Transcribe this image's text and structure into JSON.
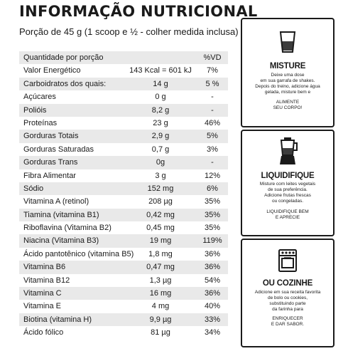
{
  "title": "INFORMAÇÃO NUTRICIONAL",
  "subtitle": "Porção de 45 g (1 scoop e ½ - colher medida inclusa)",
  "table": {
    "header": {
      "name": "Quantidade por porção",
      "pct": "%VD"
    },
    "rows": [
      {
        "name": "Valor Energético",
        "amount": "143 Kcal = 601 kJ",
        "pct": "7%"
      },
      {
        "name": "Carboidratos dos quais:",
        "amount": "14 g",
        "pct": "5 %"
      },
      {
        "name": "Açúcares",
        "amount": "0 g",
        "pct": "-"
      },
      {
        "name": "Polióis",
        "amount": "8,2 g",
        "pct": "-"
      },
      {
        "name": "Proteínas",
        "amount": "23 g",
        "pct": "46%"
      },
      {
        "name": "Gorduras Totais",
        "amount": "2,9 g",
        "pct": "5%"
      },
      {
        "name": "Gorduras Saturadas",
        "amount": "0,7 g",
        "pct": "3%"
      },
      {
        "name": "Gorduras Trans",
        "amount": "0g",
        "pct": "-"
      },
      {
        "name": "Fibra Alimentar",
        "amount": "3 g",
        "pct": "12%"
      },
      {
        "name": "Sódio",
        "amount": "152 mg",
        "pct": "6%"
      },
      {
        "name": "Vitamina A (retinol)",
        "amount": "208 µg",
        "pct": "35%"
      },
      {
        "name": "Tiamina (vitamina B1)",
        "amount": "0,42 mg",
        "pct": "35%"
      },
      {
        "name": "Riboflavina (Vitamina B2)",
        "amount": "0,45 mg",
        "pct": "35%"
      },
      {
        "name": "Niacina (Vitamina B3)",
        "amount": "19 mg",
        "pct": "119%"
      },
      {
        "name": "Ácido pantotênico (vitamina B5)",
        "amount": "1,8 mg",
        "pct": "36%"
      },
      {
        "name": "Vitamina B6",
        "amount": "0,47 mg",
        "pct": "36%"
      },
      {
        "name": "Vitamina B12",
        "amount": "1,3 µg",
        "pct": "54%"
      },
      {
        "name": "Vitamina C",
        "amount": "16 mg",
        "pct": "36%"
      },
      {
        "name": "Vitamina E",
        "amount": "4 mg",
        "pct": "40%"
      },
      {
        "name": "Biotina (vitamina H)",
        "amount": "9,9 µg",
        "pct": "33%"
      },
      {
        "name": "Ácido fólico",
        "amount": "81 µg",
        "pct": "34%"
      }
    ]
  },
  "panels": [
    {
      "icon": "glass-icon",
      "title": "MISTURE",
      "desc": [
        "Deixe uma dose",
        "em sua garrafa de shakes.",
        "Depois do treino, adicione água",
        "gelada, misture bem e"
      ],
      "tag": [
        "ALIMENTE",
        "SEU CORPO!"
      ]
    },
    {
      "icon": "blender-icon",
      "title": "LIQUIDIFIQUE",
      "desc": [
        "Misture com leites vegetais",
        "de sua preferência.",
        "Adicione frutas frescas",
        "ou congeladas."
      ],
      "tag": [
        "LIQUIDIFIQUE BEM",
        "E APRECIE"
      ]
    },
    {
      "icon": "oven-icon",
      "title": "OU COZINHE",
      "desc": [
        "Adicione em sua receita favorita",
        "de bolo ou cookies,",
        "substituindo parte",
        "da farinha para"
      ],
      "tag": [
        "ENRIQUECER",
        "E DAR SABOR."
      ]
    }
  ]
}
